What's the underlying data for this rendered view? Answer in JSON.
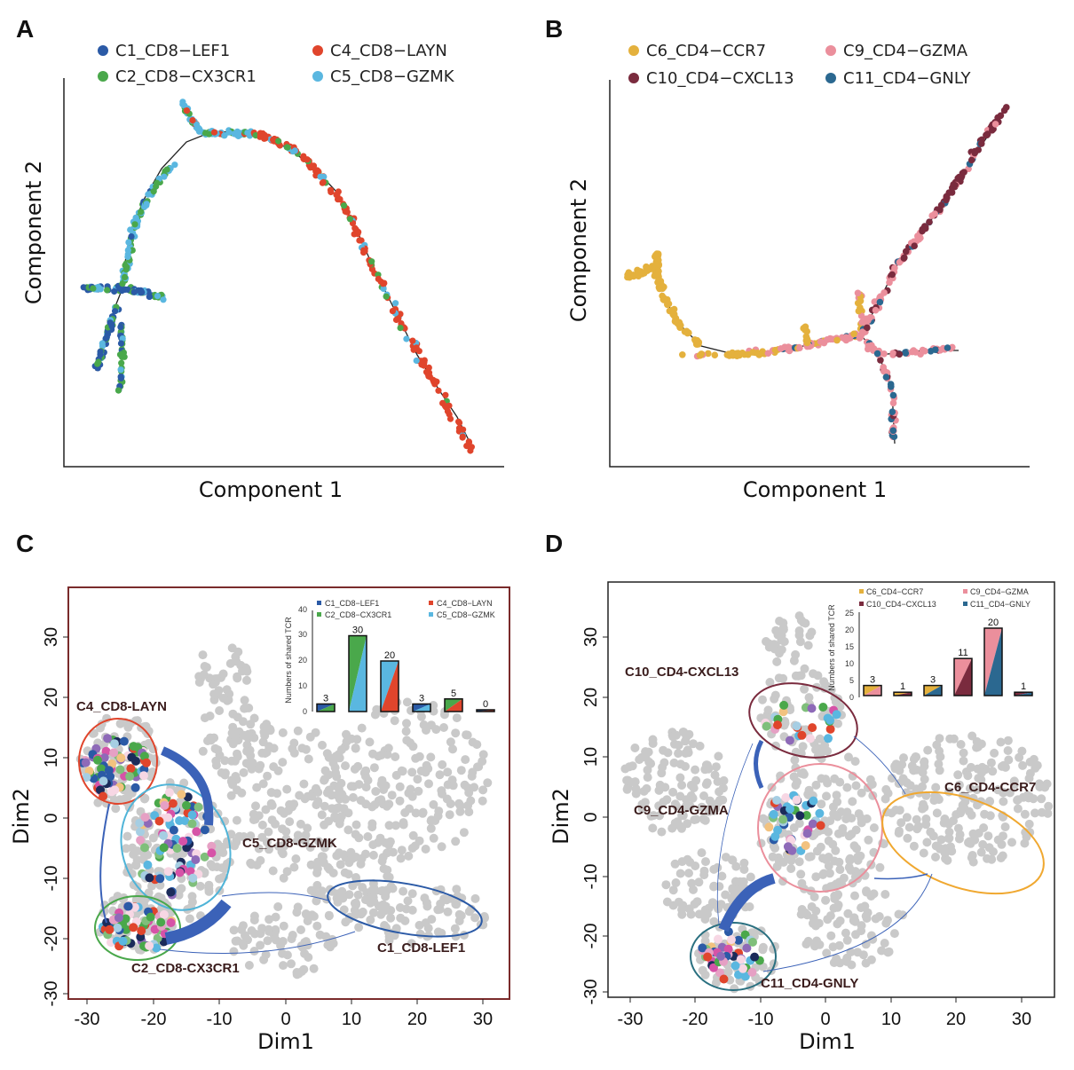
{
  "panels": {
    "A": {
      "letter": "A",
      "xlabel": "Component 1",
      "ylabel": "Component 2",
      "legend": [
        "C1_CD8−LEF1",
        "C4_CD8−LAYN",
        "C2_CD8−CX3CR1",
        "C5_CD8−GZMK"
      ],
      "legend_colors": [
        "#2b5aa6",
        "#e0452c",
        "#4aa84b",
        "#5ab7e0"
      ]
    },
    "B": {
      "letter": "B",
      "xlabel": "Component 1",
      "ylabel": "Component 2",
      "legend": [
        "C6_CD4−CCR7",
        "C9_CD4−GZMA",
        "C10_CD4−CXCL13",
        "C11_CD4−GNLY"
      ],
      "legend_colors": [
        "#e4b13d",
        "#eb8f9c",
        "#7a2b3e",
        "#2b6890"
      ]
    },
    "C": {
      "letter": "C",
      "xlabel": "Dim1",
      "ylabel": "Dim2",
      "xticks": [
        "-30",
        "-20",
        "-10",
        "0",
        "10",
        "20",
        "30"
      ],
      "yticks": [
        "30",
        "20",
        "10",
        "0",
        "-10",
        "-20",
        "-30"
      ],
      "cluster_labels": [
        "C4_CD8-LAYN",
        "C5_CD8-GZMK",
        "C2_CD8-CX3CR1",
        "C1_CD8-LEF1"
      ],
      "inset_ylabel": "Numbers of shared TCR",
      "inset_yticks": [
        "0",
        "10",
        "20",
        "30",
        "40"
      ],
      "inset_legend": [
        "C1_CD8−LEF1",
        "C4_CD8−LAYN",
        "C2_CD8−CX3CR1",
        "C5_CD8−GZMK"
      ]
    },
    "D": {
      "letter": "D",
      "xlabel": "Dim1",
      "ylabel": "Dim2",
      "xticks": [
        "-30",
        "-20",
        "-10",
        "0",
        "10",
        "20",
        "30"
      ],
      "yticks": [
        "30",
        "20",
        "10",
        "0",
        "-10",
        "-20",
        "-30"
      ],
      "cluster_labels": [
        "C10_CD4-CXCL13",
        "C9_CD4-GZMA",
        "C6_CD4-CCR7",
        "C11_CD4-GNLY"
      ],
      "inset_ylabel": "Numbers of shared TCR",
      "inset_yticks": [
        "0",
        "5",
        "10",
        "15",
        "20",
        "25"
      ],
      "inset_legend": [
        "C6_CD4−CCR7",
        "C9_CD4−GZMA",
        "C10_CD4−CXCL13",
        "C11_CD4−GNLY"
      ]
    }
  },
  "chart_data": [
    {
      "panel": "C",
      "type": "bar",
      "ylabel": "Numbers of shared TCR",
      "ylim": [
        0,
        40
      ],
      "bars": [
        {
          "value": 3,
          "colors": [
            "#2b5aa6",
            "#4aa84b"
          ]
        },
        {
          "value": 30,
          "colors": [
            "#4aa84b",
            "#5ab7e0"
          ]
        },
        {
          "value": 20,
          "colors": [
            "#5ab7e0",
            "#e0452c"
          ]
        },
        {
          "value": 3,
          "colors": [
            "#2b5aa6",
            "#5ab7e0"
          ]
        },
        {
          "value": 5,
          "colors": [
            "#4aa84b",
            "#e0452c"
          ]
        },
        {
          "value": 0,
          "colors": [
            "#2b5aa6",
            "#e0452c"
          ]
        }
      ]
    },
    {
      "panel": "D",
      "type": "bar",
      "ylabel": "Numbers of shared TCR",
      "ylim": [
        0,
        25
      ],
      "bars": [
        {
          "value": 3,
          "colors": [
            "#e4b13d",
            "#eb8f9c"
          ]
        },
        {
          "value": 1,
          "colors": [
            "#e4b13d",
            "#7a2b3e"
          ]
        },
        {
          "value": 3,
          "colors": [
            "#e4b13d",
            "#2b6890"
          ]
        },
        {
          "value": 11,
          "colors": [
            "#eb8f9c",
            "#7a2b3e"
          ]
        },
        {
          "value": 20,
          "colors": [
            "#eb8f9c",
            "#2b6890"
          ]
        },
        {
          "value": 1,
          "colors": [
            "#7a2b3e",
            "#2b6890"
          ]
        }
      ]
    }
  ]
}
